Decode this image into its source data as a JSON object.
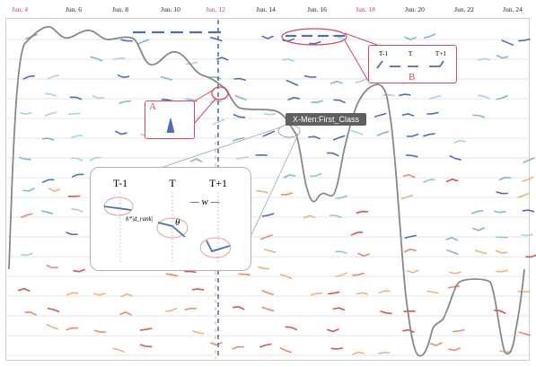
{
  "timeline": {
    "dates": [
      {
        "label": "Jun. 4",
        "highlight": true
      },
      {
        "label": "Jun. 6",
        "highlight": false
      },
      {
        "label": "Jun. 8",
        "highlight": false
      },
      {
        "label": "Jun. 10",
        "highlight": false
      },
      {
        "label": "Jun. 12",
        "highlight": true
      },
      {
        "label": "Jun. 14",
        "highlight": false
      },
      {
        "label": "Jun. 16",
        "highlight": false
      },
      {
        "label": "Jun. 18",
        "highlight": true
      },
      {
        "label": "Jun. 20",
        "highlight": false
      },
      {
        "label": "Jun. 22",
        "highlight": false
      },
      {
        "label": "Jun. 24",
        "highlight": false
      }
    ]
  },
  "tooltip": {
    "text": "X-Men:First_Class"
  },
  "callout_a": {
    "label": "A"
  },
  "callout_b": {
    "label": "B",
    "ticks": [
      "T-1",
      "T",
      "T+1"
    ]
  },
  "zoom": {
    "ticks": [
      "T-1",
      "T",
      "T+1"
    ],
    "w_label": "w",
    "theta_label": "θ",
    "h_label": "h*|d_rank|"
  },
  "colors": {
    "highlight_date": "#c0474f",
    "normal_date": "#222222",
    "callout": "#d9475a",
    "track": "#888888",
    "glyph_palette": [
      "#4e6fb5",
      "#7fb7d9",
      "#a7d3e8",
      "#f2b37a",
      "#e98b6c",
      "#d8574f",
      "#8ec5de"
    ]
  }
}
